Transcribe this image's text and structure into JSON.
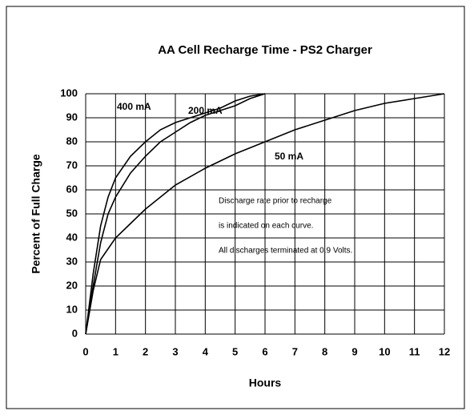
{
  "chart_data": {
    "type": "line",
    "title": "AA Cell Recharge Time - PS2 Charger",
    "x_label": "Hours",
    "y_label": "Percent of Full Charge",
    "xlim": [
      0,
      12
    ],
    "xticks": [
      0,
      1,
      2,
      3,
      4,
      5,
      6,
      7,
      8,
      9,
      10,
      11,
      12
    ],
    "ylim": [
      0,
      100
    ],
    "yticks": [
      0,
      10,
      20,
      30,
      40,
      50,
      60,
      70,
      80,
      90,
      100
    ],
    "grid": true,
    "annotations": [
      "Discharge rate prior to recharge",
      "is indicated on each curve.",
      "All discharges terminated at 0.9 Volts."
    ],
    "series": [
      {
        "name": "400 mA",
        "color": "#000000",
        "x": [
          0,
          0.25,
          0.5,
          0.75,
          1,
          1.5,
          2,
          2.5,
          3,
          3.5,
          4,
          4.5,
          5,
          5.5,
          6
        ],
        "values": [
          0,
          25,
          45,
          57,
          65,
          74,
          80,
          85,
          88,
          90,
          92,
          94,
          97,
          99,
          100
        ]
      },
      {
        "name": "200 mA",
        "color": "#000000",
        "x": [
          0,
          0.25,
          0.5,
          0.75,
          1,
          1.5,
          2,
          2.5,
          3,
          3.5,
          4,
          4.5,
          5,
          5.5,
          6
        ],
        "values": [
          0,
          20,
          38,
          50,
          57,
          67,
          74,
          80,
          84,
          88,
          91,
          93,
          95,
          98,
          100
        ]
      },
      {
        "name": "50 mA",
        "color": "#000000",
        "x": [
          0,
          0.25,
          0.5,
          1,
          1.5,
          2,
          3,
          4,
          5,
          6,
          7,
          8,
          9,
          10,
          11,
          12
        ],
        "values": [
          0,
          18,
          31,
          40,
          46,
          52,
          62,
          69,
          75,
          80,
          85,
          89,
          93,
          96,
          98,
          100
        ]
      }
    ]
  }
}
